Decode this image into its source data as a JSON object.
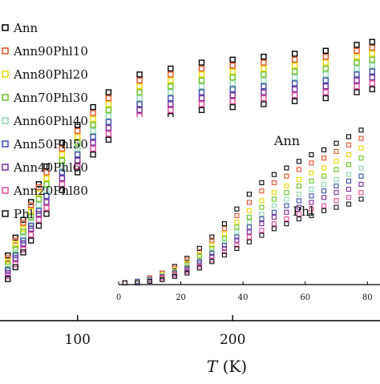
{
  "chart_data": [
    {
      "type": "scatter",
      "panel": "main",
      "xlabel_italic": "T",
      "xlabel_unit": "(K)",
      "x_ticks": [
        "100",
        "200"
      ],
      "x_tick_values": [
        100,
        200
      ],
      "xlim": [
        50,
        295
      ],
      "ylim": [
        0,
        100
      ],
      "grid": false,
      "legend_position": "top-left",
      "series": [
        {
          "name": "Ann",
          "color": "#000000",
          "x": [
            55,
            60,
            65,
            70,
            75,
            80,
            90,
            100,
            110,
            120,
            140,
            160,
            180,
            200,
            220,
            240,
            260,
            280,
            290
          ],
          "y": [
            22,
            28,
            34,
            40,
            46,
            52,
            60,
            66,
            72,
            77,
            83,
            85,
            87,
            88,
            89,
            90,
            91,
            93,
            94
          ]
        },
        {
          "name": "Ann90Phl10",
          "color": "#e0522a",
          "x": [
            55,
            60,
            65,
            70,
            75,
            80,
            90,
            100,
            110,
            120,
            140,
            160,
            180,
            200,
            220,
            240,
            260,
            280,
            290
          ],
          "y": [
            21,
            27,
            33,
            39,
            45,
            50,
            58,
            64,
            70,
            75,
            81,
            83,
            85,
            86,
            87,
            88,
            89,
            91,
            92
          ]
        },
        {
          "name": "Ann80Phl20",
          "color": "#e8d800",
          "x": [
            55,
            60,
            65,
            70,
            75,
            80,
            90,
            100,
            110,
            120,
            140,
            160,
            180,
            200,
            220,
            240,
            260,
            280,
            290
          ],
          "y": [
            20,
            26,
            31,
            37,
            43,
            48,
            56,
            62,
            68,
            73,
            79,
            81,
            83,
            84,
            85,
            86,
            87,
            89,
            90
          ]
        },
        {
          "name": "Ann70Phl30",
          "color": "#6cc024",
          "x": [
            55,
            60,
            65,
            70,
            75,
            80,
            90,
            100,
            110,
            120,
            140,
            160,
            180,
            200,
            220,
            240,
            260,
            280,
            290
          ],
          "y": [
            19,
            24,
            30,
            35,
            41,
            46,
            54,
            60,
            66,
            71,
            77,
            79,
            81,
            82,
            83,
            84,
            85,
            87,
            88
          ]
        },
        {
          "name": "Ann60Phl40",
          "color": "#8fd8b0",
          "x": [
            55,
            60,
            65,
            70,
            75,
            80,
            90,
            100,
            110,
            120,
            140,
            160,
            180,
            200,
            220,
            240,
            260,
            280,
            290
          ],
          "y": [
            18,
            23,
            28,
            33,
            39,
            44,
            52,
            58,
            64,
            69,
            75,
            77,
            79,
            80,
            81,
            82,
            83,
            85,
            86
          ]
        },
        {
          "name": "Ann50Phl50",
          "color": "#3a4fa8",
          "x": [
            55,
            60,
            65,
            70,
            75,
            80,
            90,
            100,
            110,
            120,
            140,
            160,
            180,
            200,
            220,
            240,
            260,
            280,
            290
          ],
          "y": [
            17,
            22,
            27,
            32,
            37,
            42,
            50,
            56,
            62,
            67,
            73,
            75,
            77,
            78,
            79,
            80,
            81,
            83,
            84
          ]
        },
        {
          "name": "Ann40Phl60",
          "color": "#7a2a9a",
          "x": [
            55,
            60,
            65,
            70,
            75,
            80,
            90,
            100,
            110,
            120,
            140,
            160,
            180,
            200,
            220,
            240,
            260,
            280,
            290
          ],
          "y": [
            16,
            21,
            26,
            31,
            36,
            40,
            48,
            54,
            60,
            65,
            71,
            73,
            75,
            76,
            77,
            78,
            79,
            81,
            82
          ]
        },
        {
          "name": "Ann20Phl80",
          "color": "#e0489a",
          "x": [
            55,
            60,
            65,
            70,
            75,
            80,
            90,
            100,
            110,
            120,
            140,
            160,
            180,
            200,
            220,
            240,
            260,
            280,
            290
          ],
          "y": [
            15,
            19,
            24,
            29,
            34,
            38,
            46,
            52,
            58,
            63,
            69,
            71,
            73,
            74,
            75,
            76,
            77,
            79,
            80
          ]
        },
        {
          "name": "Phl",
          "color": "#111111",
          "x": [
            55,
            60,
            65,
            70,
            75,
            80,
            90,
            100,
            110,
            120,
            140,
            160,
            180,
            200,
            220,
            240,
            260,
            280,
            290
          ],
          "y": [
            14,
            18,
            23,
            27,
            32,
            36,
            44,
            50,
            56,
            61,
            67,
            69,
            71,
            72,
            73,
            74,
            75,
            77,
            78
          ]
        }
      ]
    },
    {
      "type": "scatter",
      "panel": "inset",
      "x_ticks": [
        "0",
        "20",
        "40",
        "60",
        "80"
      ],
      "x_tick_values": [
        0,
        20,
        40,
        60,
        80
      ],
      "xlim": [
        0,
        82
      ],
      "ylim": [
        0,
        100
      ],
      "annotations": [
        {
          "text": "Ann",
          "x": 50,
          "y": 85
        },
        {
          "text": "Phl",
          "x": 56,
          "y": 42
        }
      ],
      "series": [
        {
          "name": "Ann",
          "color": "#000000",
          "x": [
            2,
            6,
            10,
            14,
            18,
            22,
            26,
            30,
            34,
            38,
            42,
            46,
            50,
            54,
            58,
            62,
            66,
            70,
            74,
            78
          ],
          "y": [
            1,
            2,
            4,
            7,
            11,
            16,
            22,
            29,
            37,
            46,
            55,
            62,
            67,
            71,
            75,
            79,
            82,
            86,
            90,
            94
          ]
        },
        {
          "name": "Ann90Phl10",
          "color": "#e0522a",
          "x": [
            2,
            6,
            10,
            14,
            18,
            22,
            26,
            30,
            34,
            38,
            42,
            46,
            50,
            54,
            58,
            62,
            66,
            70,
            74,
            78
          ],
          "y": [
            1,
            2,
            4,
            7,
            10,
            15,
            20,
            27,
            34,
            42,
            50,
            57,
            62,
            66,
            70,
            74,
            77,
            81,
            85,
            89
          ]
        },
        {
          "name": "Ann80Phl20",
          "color": "#e8d800",
          "x": [
            2,
            6,
            10,
            14,
            18,
            22,
            26,
            30,
            34,
            38,
            42,
            46,
            50,
            54,
            58,
            62,
            66,
            70,
            74,
            78
          ],
          "y": [
            1,
            2,
            3,
            6,
            9,
            13,
            18,
            24,
            31,
            38,
            45,
            51,
            56,
            60,
            64,
            68,
            71,
            75,
            79,
            83
          ]
        },
        {
          "name": "Ann70Phl30",
          "color": "#6cc024",
          "x": [
            2,
            6,
            10,
            14,
            18,
            22,
            26,
            30,
            34,
            38,
            42,
            46,
            50,
            54,
            58,
            62,
            66,
            70,
            74,
            78
          ],
          "y": [
            1,
            2,
            3,
            5,
            8,
            12,
            17,
            22,
            28,
            35,
            41,
            47,
            52,
            56,
            60,
            63,
            66,
            70,
            73,
            77
          ]
        },
        {
          "name": "Ann60Phl40",
          "color": "#8fd8b0",
          "x": [
            2,
            6,
            10,
            14,
            18,
            22,
            26,
            30,
            34,
            38,
            42,
            46,
            50,
            54,
            58,
            62,
            66,
            70,
            74,
            78
          ],
          "y": [
            1,
            2,
            3,
            5,
            8,
            11,
            15,
            20,
            26,
            32,
            38,
            43,
            48,
            52,
            55,
            58,
            61,
            64,
            67,
            71
          ]
        },
        {
          "name": "Ann50Phl50",
          "color": "#3a4fa8",
          "x": [
            2,
            6,
            10,
            14,
            18,
            22,
            26,
            30,
            34,
            38,
            42,
            46,
            50,
            54,
            58,
            62,
            66,
            70,
            74,
            78
          ],
          "y": [
            1,
            2,
            3,
            5,
            7,
            10,
            14,
            19,
            24,
            29,
            35,
            40,
            44,
            48,
            51,
            54,
            57,
            60,
            63,
            66
          ]
        },
        {
          "name": "Ann40Phl60",
          "color": "#7a2a9a",
          "x": [
            2,
            6,
            10,
            14,
            18,
            22,
            26,
            30,
            34,
            38,
            42,
            46,
            50,
            54,
            58,
            62,
            66,
            70,
            74,
            78
          ],
          "y": [
            1,
            1,
            2,
            4,
            6,
            9,
            13,
            17,
            22,
            27,
            32,
            37,
            41,
            44,
            47,
            50,
            53,
            56,
            58,
            61
          ]
        },
        {
          "name": "Ann20Phl80",
          "color": "#e0489a",
          "x": [
            2,
            6,
            10,
            14,
            18,
            22,
            26,
            30,
            34,
            38,
            42,
            46,
            50,
            54,
            58,
            62,
            66,
            70,
            74,
            78
          ],
          "y": [
            1,
            1,
            2,
            4,
            6,
            8,
            11,
            15,
            20,
            24,
            29,
            33,
            37,
            40,
            43,
            46,
            48,
            51,
            53,
            56
          ]
        },
        {
          "name": "Phl",
          "color": "#111111",
          "x": [
            2,
            6,
            10,
            14,
            18,
            22,
            26,
            30,
            34,
            38,
            42,
            46,
            50,
            54,
            58,
            62,
            66,
            70,
            74,
            78
          ],
          "y": [
            1,
            1,
            2,
            3,
            5,
            7,
            10,
            14,
            18,
            22,
            26,
            30,
            34,
            37,
            40,
            42,
            45,
            47,
            49,
            52
          ]
        }
      ]
    }
  ]
}
